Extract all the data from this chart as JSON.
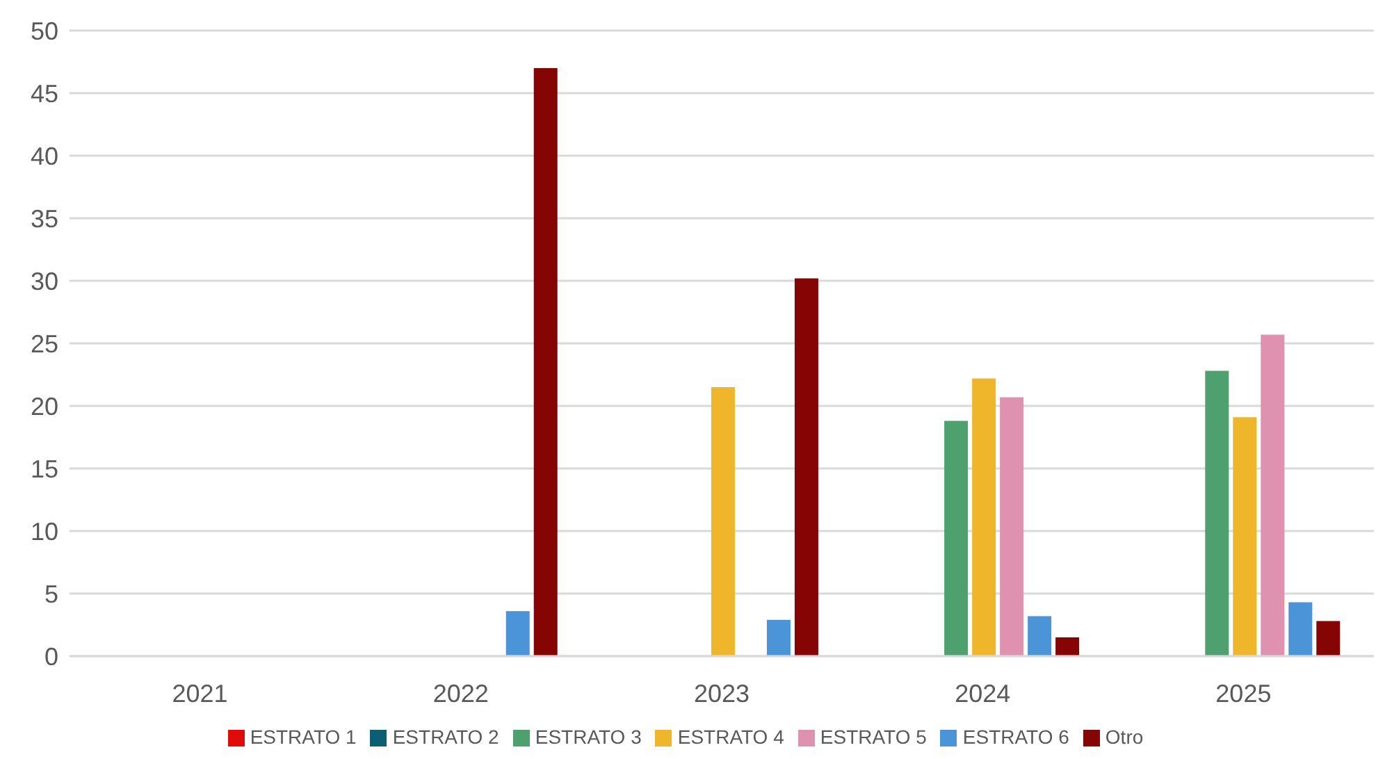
{
  "chart_data": {
    "type": "bar",
    "categories": [
      "2021",
      "2022",
      "2023",
      "2024",
      "2025"
    ],
    "series": [
      {
        "name": "ESTRATO 1",
        "color": "#e00b0b",
        "values": [
          null,
          null,
          null,
          null,
          null
        ]
      },
      {
        "name": "ESTRATO 2",
        "color": "#0b5e73",
        "values": [
          null,
          null,
          null,
          null,
          null
        ]
      },
      {
        "name": "ESTRATO 3",
        "color": "#4ea06f",
        "values": [
          null,
          null,
          null,
          18.8,
          22.8
        ]
      },
      {
        "name": "ESTRATO 4",
        "color": "#f0b62b",
        "values": [
          null,
          null,
          21.5,
          22.2,
          19.1
        ]
      },
      {
        "name": "ESTRATO 5",
        "color": "#df91b0",
        "values": [
          null,
          null,
          null,
          20.7,
          25.7
        ]
      },
      {
        "name": "ESTRATO 6",
        "color": "#4c94d8",
        "values": [
          null,
          3.6,
          2.9,
          3.2,
          4.3
        ]
      },
      {
        "name": "Otro",
        "color": "#850404",
        "values": [
          null,
          47,
          30.2,
          1.5,
          2.8
        ]
      }
    ],
    "ylim": [
      0,
      50
    ],
    "yticks": [
      0,
      5,
      10,
      15,
      20,
      25,
      30,
      35,
      40,
      45,
      50
    ],
    "grid": "y",
    "legend": "bottom"
  }
}
